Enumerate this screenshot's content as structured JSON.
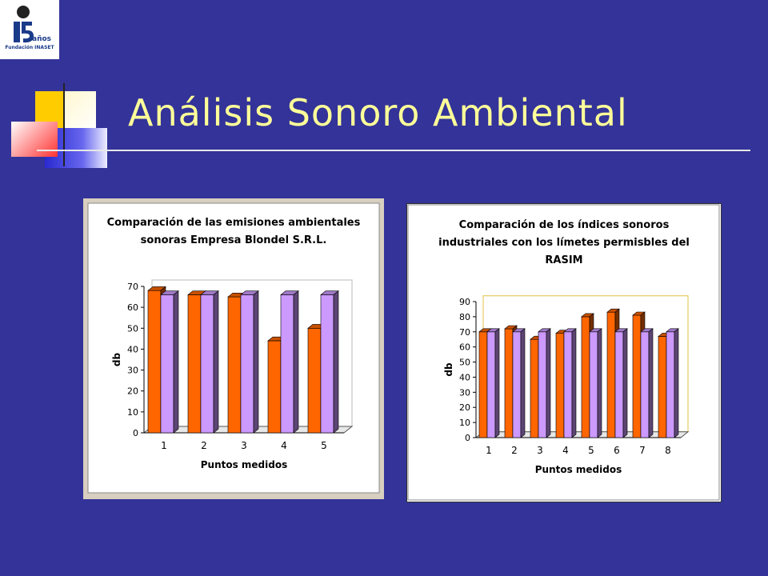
{
  "slide": {
    "title": "Análisis Sonoro Ambiental",
    "logo": {
      "number": "15",
      "suffix": "años",
      "org": "Fundación INASET"
    },
    "colors": {
      "background": "#333399",
      "title": "#ffff99"
    }
  },
  "chart_data": [
    {
      "type": "bar",
      "title_lines": [
        "Comparación de las emisiones ambientales",
        "sonoras Empresa Blondel S.R.L."
      ],
      "xlabel": "Puntos medidos",
      "ylabel": "db",
      "categories": [
        "1",
        "2",
        "3",
        "4",
        "5"
      ],
      "ylim": [
        0,
        70
      ],
      "yticks": [
        "0",
        "10",
        "20",
        "30",
        "40",
        "50",
        "60",
        "70"
      ],
      "series": [
        {
          "values": [
            68,
            66,
            65,
            44,
            50
          ],
          "color": "#ff6600"
        },
        {
          "values": [
            66,
            66,
            66,
            66,
            66
          ],
          "color": "#cc99ff"
        }
      ],
      "style": "3d-clustered",
      "grid": false
    },
    {
      "type": "bar",
      "title_lines": [
        "Comparación de los índices sonoros",
        "industriales con los límetes permisbles del",
        "RASIM"
      ],
      "xlabel": "Puntos medidos",
      "ylabel": "db",
      "categories": [
        "1",
        "2",
        "3",
        "4",
        "5",
        "6",
        "7",
        "8"
      ],
      "ylim": [
        0,
        90
      ],
      "yticks": [
        "0",
        "10",
        "20",
        "30",
        "40",
        "50",
        "60",
        "70",
        "80",
        "90"
      ],
      "series": [
        {
          "values": [
            70,
            72,
            65,
            69,
            80,
            83,
            81,
            67
          ],
          "color": "#ff6600"
        },
        {
          "values": [
            70,
            70,
            70,
            70,
            70,
            70,
            70,
            70
          ],
          "color": "#cc99ff"
        }
      ],
      "style": "3d-clustered",
      "grid": false
    }
  ]
}
